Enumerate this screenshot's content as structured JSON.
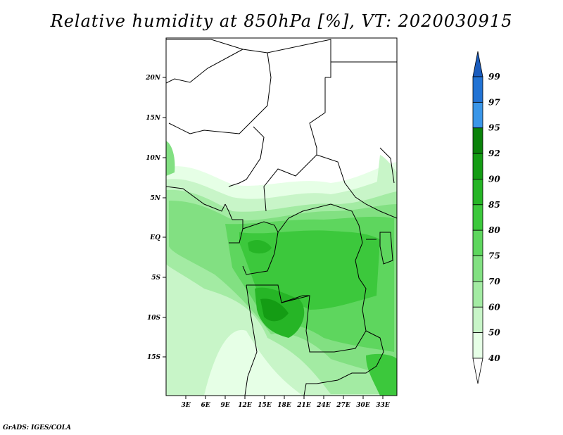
{
  "title": "Relative humidity at 850hPa [%], VT: 2020030915",
  "credit": "GrADS: IGES/COLA",
  "map": {
    "lat_labels": [
      "20N",
      "15N",
      "10N",
      "5N",
      "EQ",
      "5S",
      "10S",
      "15S"
    ],
    "lon_labels": [
      "3E",
      "6E",
      "9E",
      "12E",
      "15E",
      "18E",
      "21E",
      "24E",
      "27E",
      "30E",
      "33E"
    ],
    "field": "relative-humidity-850hPa",
    "units": "%"
  },
  "colorbar": {
    "levels": [
      "40",
      "50",
      "60",
      "70",
      "75",
      "80",
      "85",
      "90",
      "92",
      "95",
      "97",
      "99"
    ],
    "colors": [
      "#ffffff",
      "#e6ffe6",
      "#c8f5c8",
      "#a3eba3",
      "#82e082",
      "#5ed65e",
      "#3cc83c",
      "#26b526",
      "#149c14",
      "#0a820a",
      "#3a96e8",
      "#2273d4",
      "#1a5cbd"
    ]
  }
}
